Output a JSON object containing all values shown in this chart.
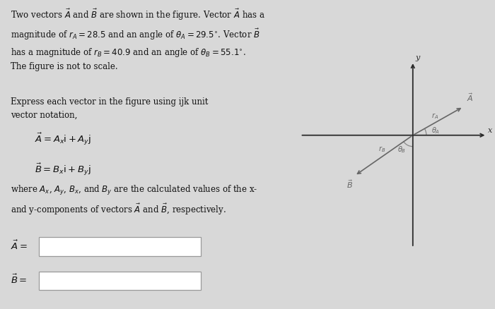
{
  "bg_color": "#d8d8d8",
  "title_line1": "Two vectors ",
  "title_text": "Two vectors $\\vec{A}$ and $\\vec{B}$ are shown in the figure. Vector $\\vec{A}$ has a\nmagnitude of $r_A = 28.5$ and an angle of $\\theta_A = 29.5^{\\circ}$. Vector $\\vec{B}$\nhas a magnitude of $r_B = 40.9$ and an angle of $\\theta_B = 55.1^{\\circ}$.\nThe figure is not to scale.",
  "expr_text": "Express each vector in the figure using ijk unit\nvector notation,",
  "eq1": "$\\vec{A} = A_x$i $+ A_y$j",
  "eq2": "$\\vec{B} = B_x$i $+ B_y$j",
  "where_text": "where $A_x$, $A_y$, $B_x$, and $B_y$ are the calculated values of the x-\nand y-components of vectors $\\vec{A}$ and $\\vec{B}$, respectively.",
  "label_A": "$\\vec{A} =$",
  "label_B": "$\\vec{B} =$",
  "theta_A_deg": 29.5,
  "theta_B_deg": 55.1,
  "axis_color": "#2a2a2a",
  "vector_color": "#666666",
  "arc_color": "#888888",
  "text_color": "#111111",
  "box_facecolor": "#ffffff",
  "box_edgecolor": "#999999"
}
